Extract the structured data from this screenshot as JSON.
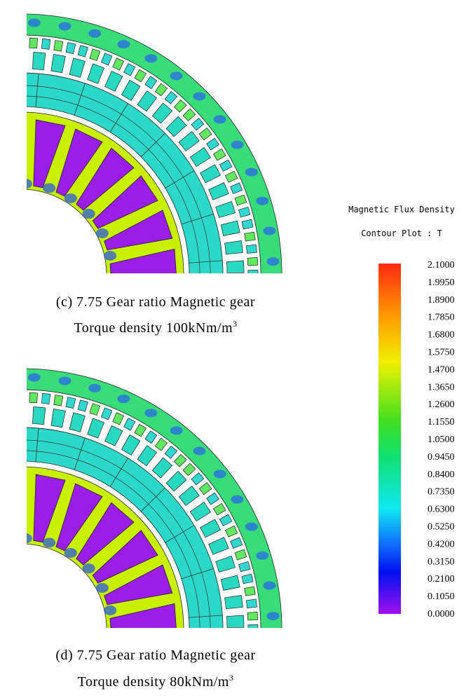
{
  "figures": [
    {
      "caption_line1": "(c) 7.75 Gear ratio Magnetic gear",
      "caption_line2": "Torque density 100kNm/m",
      "caption_sup": "3"
    },
    {
      "caption_line1": "(d) 7.75 Gear ratio Magnetic gear",
      "caption_line2": "Torque density 80kNm/m",
      "caption_sup": "3"
    }
  ],
  "legend": {
    "title": "Magnetic Flux Density",
    "subtitle": "Contour Plot : T",
    "ticks": [
      "2.1000",
      "1.9950",
      "1.8900",
      "1.7850",
      "1.6800",
      "1.5750",
      "1.4700",
      "1.3650",
      "1.2600",
      "1.1550",
      "1.0500",
      "0.9450",
      "0.8400",
      "0.7350",
      "0.6300",
      "0.5250",
      "0.4200",
      "0.3150",
      "0.2100",
      "0.1050",
      "0.0000"
    ]
  }
}
